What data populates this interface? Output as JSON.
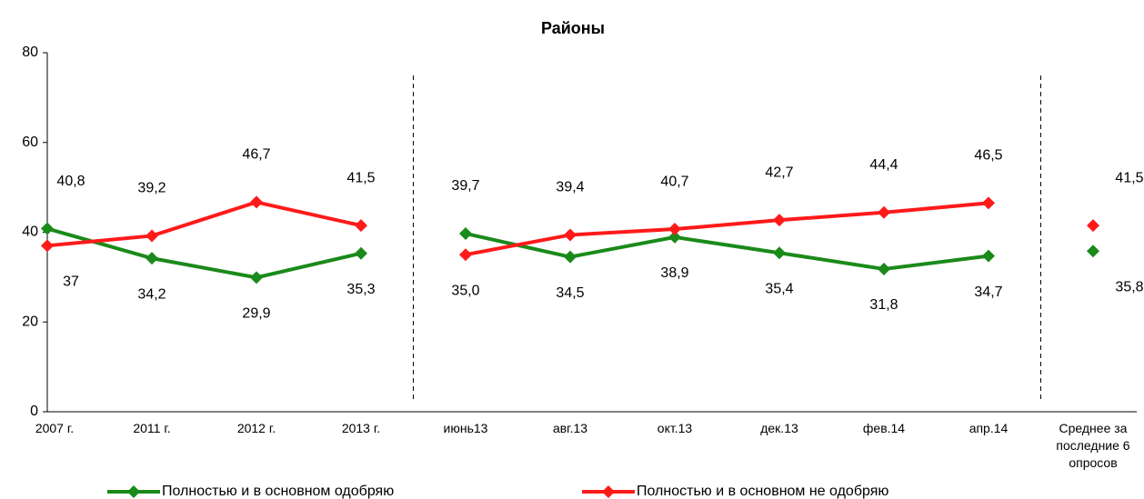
{
  "chart_data": {
    "type": "line",
    "title": "Районы",
    "categories": [
      "2007 г.",
      "2011 г.",
      "2012 г.",
      "2013 г.",
      "июнь13",
      "авг.13",
      "окт.13",
      "дек.13",
      "фев.14",
      "апр.14",
      "Среднее за последние 6 опросов"
    ],
    "series": [
      {
        "name": "Полностью и в основном одобряю",
        "color": "#1a8a1a",
        "values": [
          40.8,
          34.2,
          29.9,
          35.3,
          39.7,
          34.5,
          38.9,
          35.4,
          31.8,
          34.7,
          35.8
        ],
        "value_labels": [
          "40,8",
          "34,2",
          "29,9",
          "35,3",
          "39,7",
          "34,5",
          "38,9",
          "35,4",
          "31,8",
          "34,7",
          "35,8"
        ]
      },
      {
        "name": "Полностью и в основном не одобряю",
        "color": "#ff1a1a",
        "values": [
          37,
          39.2,
          46.7,
          41.5,
          35.0,
          39.4,
          40.7,
          42.7,
          44.4,
          46.5,
          41.5
        ],
        "value_labels": [
          "37",
          "39,2",
          "46,7",
          "41,5",
          "35,0",
          "39,4",
          "40,7",
          "42,7",
          "44,4",
          "46,5",
          "41,5"
        ]
      }
    ],
    "ylim": [
      0,
      80
    ],
    "yticks": [
      0,
      20,
      40,
      60,
      80
    ],
    "grid": false,
    "dividers_after": [
      3,
      9
    ],
    "legend": "bottom"
  }
}
